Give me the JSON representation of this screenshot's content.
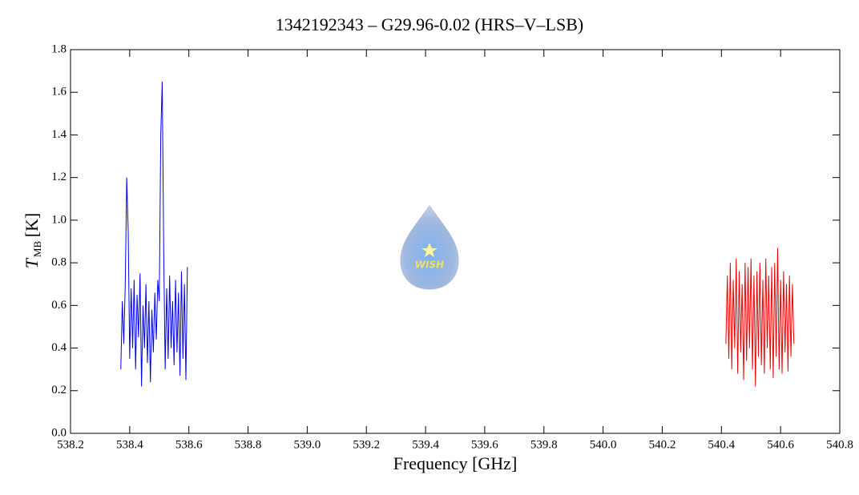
{
  "chart_data": {
    "type": "line",
    "title": "1342192343 – G29.96-0.02 (HRS–V–LSB)",
    "x_label": "Frequency [GHz]",
    "y_label_symbol": "T",
    "y_label_subscript": "MB",
    "y_label_unit": "[K]",
    "logo_text": "WISH",
    "xlim": [
      538.2,
      540.8
    ],
    "xticks": [
      538.2,
      538.4,
      538.6,
      538.8,
      {
        "value": 539,
        "label": "539.0"
      },
      539.2,
      539.4,
      539.6,
      539.8,
      {
        "value": 540,
        "label": "540.0"
      },
      540.2,
      540.4,
      540.6,
      540.8
    ],
    "ylim": [
      0,
      1.8
    ],
    "yticks": [
      {
        "value": 0,
        "label": "0.0"
      },
      0.2,
      0.4,
      0.6,
      0.8,
      {
        "value": 1,
        "label": "1.0"
      },
      1.2,
      1.4,
      1.6,
      1.8
    ],
    "series": [
      {
        "color": "#0000ee",
        "x": [
          538.37,
          538.375,
          538.38,
          538.385,
          538.39,
          538.395,
          538.4,
          538.405,
          538.41,
          538.415,
          538.42,
          538.425,
          538.43,
          538.435,
          538.44,
          538.445,
          538.45,
          538.455,
          538.46,
          538.465,
          538.47,
          538.475,
          538.48,
          538.485,
          538.49,
          538.495,
          538.5,
          538.505,
          538.51,
          538.515,
          538.52,
          538.525,
          538.53,
          538.535,
          538.54,
          538.545,
          538.55,
          538.555,
          538.56,
          538.565,
          538.57,
          538.575,
          538.58,
          538.585,
          538.59,
          538.595
        ],
        "values": [
          0.3,
          0.62,
          0.42,
          0.7,
          1.2,
          0.95,
          0.35,
          0.68,
          0.4,
          0.72,
          0.3,
          0.65,
          0.45,
          0.75,
          0.22,
          0.6,
          0.4,
          0.7,
          0.33,
          0.62,
          0.24,
          0.58,
          0.38,
          0.66,
          0.44,
          0.72,
          0.62,
          1.4,
          1.65,
          0.85,
          0.3,
          0.68,
          0.35,
          0.74,
          0.4,
          0.62,
          0.32,
          0.72,
          0.38,
          0.66,
          0.27,
          0.76,
          0.35,
          0.7,
          0.25,
          0.78
        ]
      },
      {
        "color": "#ee0000",
        "x": [
          540.415,
          540.42,
          540.425,
          540.43,
          540.435,
          540.44,
          540.445,
          540.45,
          540.455,
          540.46,
          540.465,
          540.47,
          540.475,
          540.48,
          540.485,
          540.49,
          540.495,
          540.5,
          540.505,
          540.51,
          540.515,
          540.52,
          540.525,
          540.53,
          540.535,
          540.54,
          540.545,
          540.55,
          540.555,
          540.56,
          540.565,
          540.57,
          540.575,
          540.58,
          540.585,
          540.59,
          540.595,
          540.6,
          540.605,
          540.61,
          540.615,
          540.62,
          540.625,
          540.63,
          540.635,
          540.64,
          540.645
        ],
        "values": [
          0.42,
          0.74,
          0.35,
          0.8,
          0.3,
          0.72,
          0.4,
          0.82,
          0.28,
          0.76,
          0.38,
          0.7,
          0.25,
          0.8,
          0.34,
          0.78,
          0.4,
          0.82,
          0.3,
          0.74,
          0.22,
          0.76,
          0.36,
          0.8,
          0.32,
          0.72,
          0.28,
          0.82,
          0.4,
          0.74,
          0.3,
          0.78,
          0.26,
          0.8,
          0.36,
          0.87,
          0.3,
          0.72,
          0.28,
          0.76,
          0.38,
          0.7,
          0.29,
          0.74,
          0.36,
          0.7,
          0.42
        ]
      }
    ]
  }
}
